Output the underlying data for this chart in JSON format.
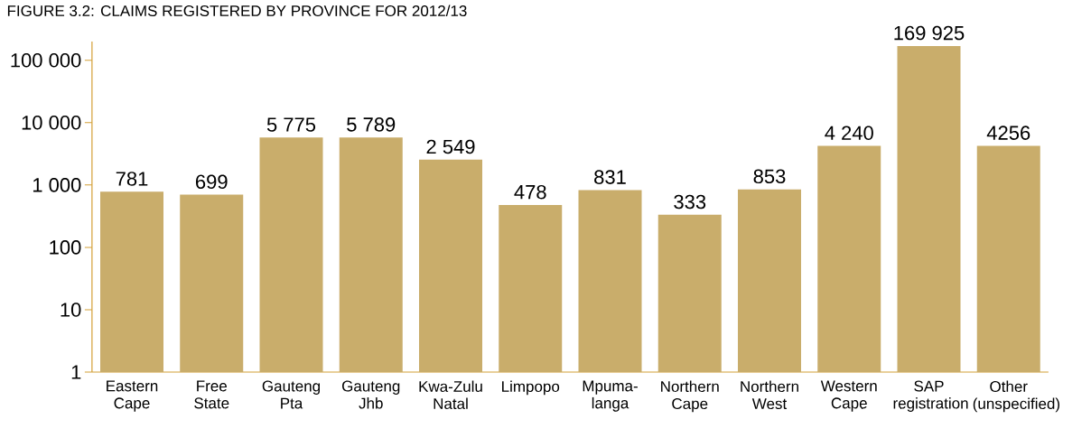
{
  "chart_data": {
    "type": "bar",
    "title": "FIGURE 3.2: CLAIMS REGISTERED BY PROVINCE FOR 2012/13",
    "categories": [
      "Eastern Cape",
      "Free State",
      "Gauteng Pta",
      "Gauteng Jhb",
      "Kwa-Zulu Natal",
      "Limpopo",
      "Mpuma-langa",
      "Northern Cape",
      "Northern West",
      "Western Cape",
      "SAP registration",
      "Other (unspecified)"
    ],
    "values": [
      781,
      699,
      5775,
      5789,
      2549,
      478,
      831,
      333,
      853,
      4240,
      169925,
      4256
    ],
    "value_labels": [
      "781",
      "699",
      "5 775",
      "5 789",
      "2 549",
      "478",
      "831",
      "333",
      "853",
      "4 240",
      "169 925",
      "4256"
    ],
    "color": "#c9ad6b",
    "log": true,
    "grid": false,
    "ylim": [
      1,
      200000
    ],
    "yticks": [
      1,
      10,
      100,
      {
        "value": 1000,
        "label": "1 000"
      },
      {
        "value": 10000,
        "label": "10 000"
      },
      {
        "value": 100000,
        "label": "100 000"
      }
    ]
  }
}
